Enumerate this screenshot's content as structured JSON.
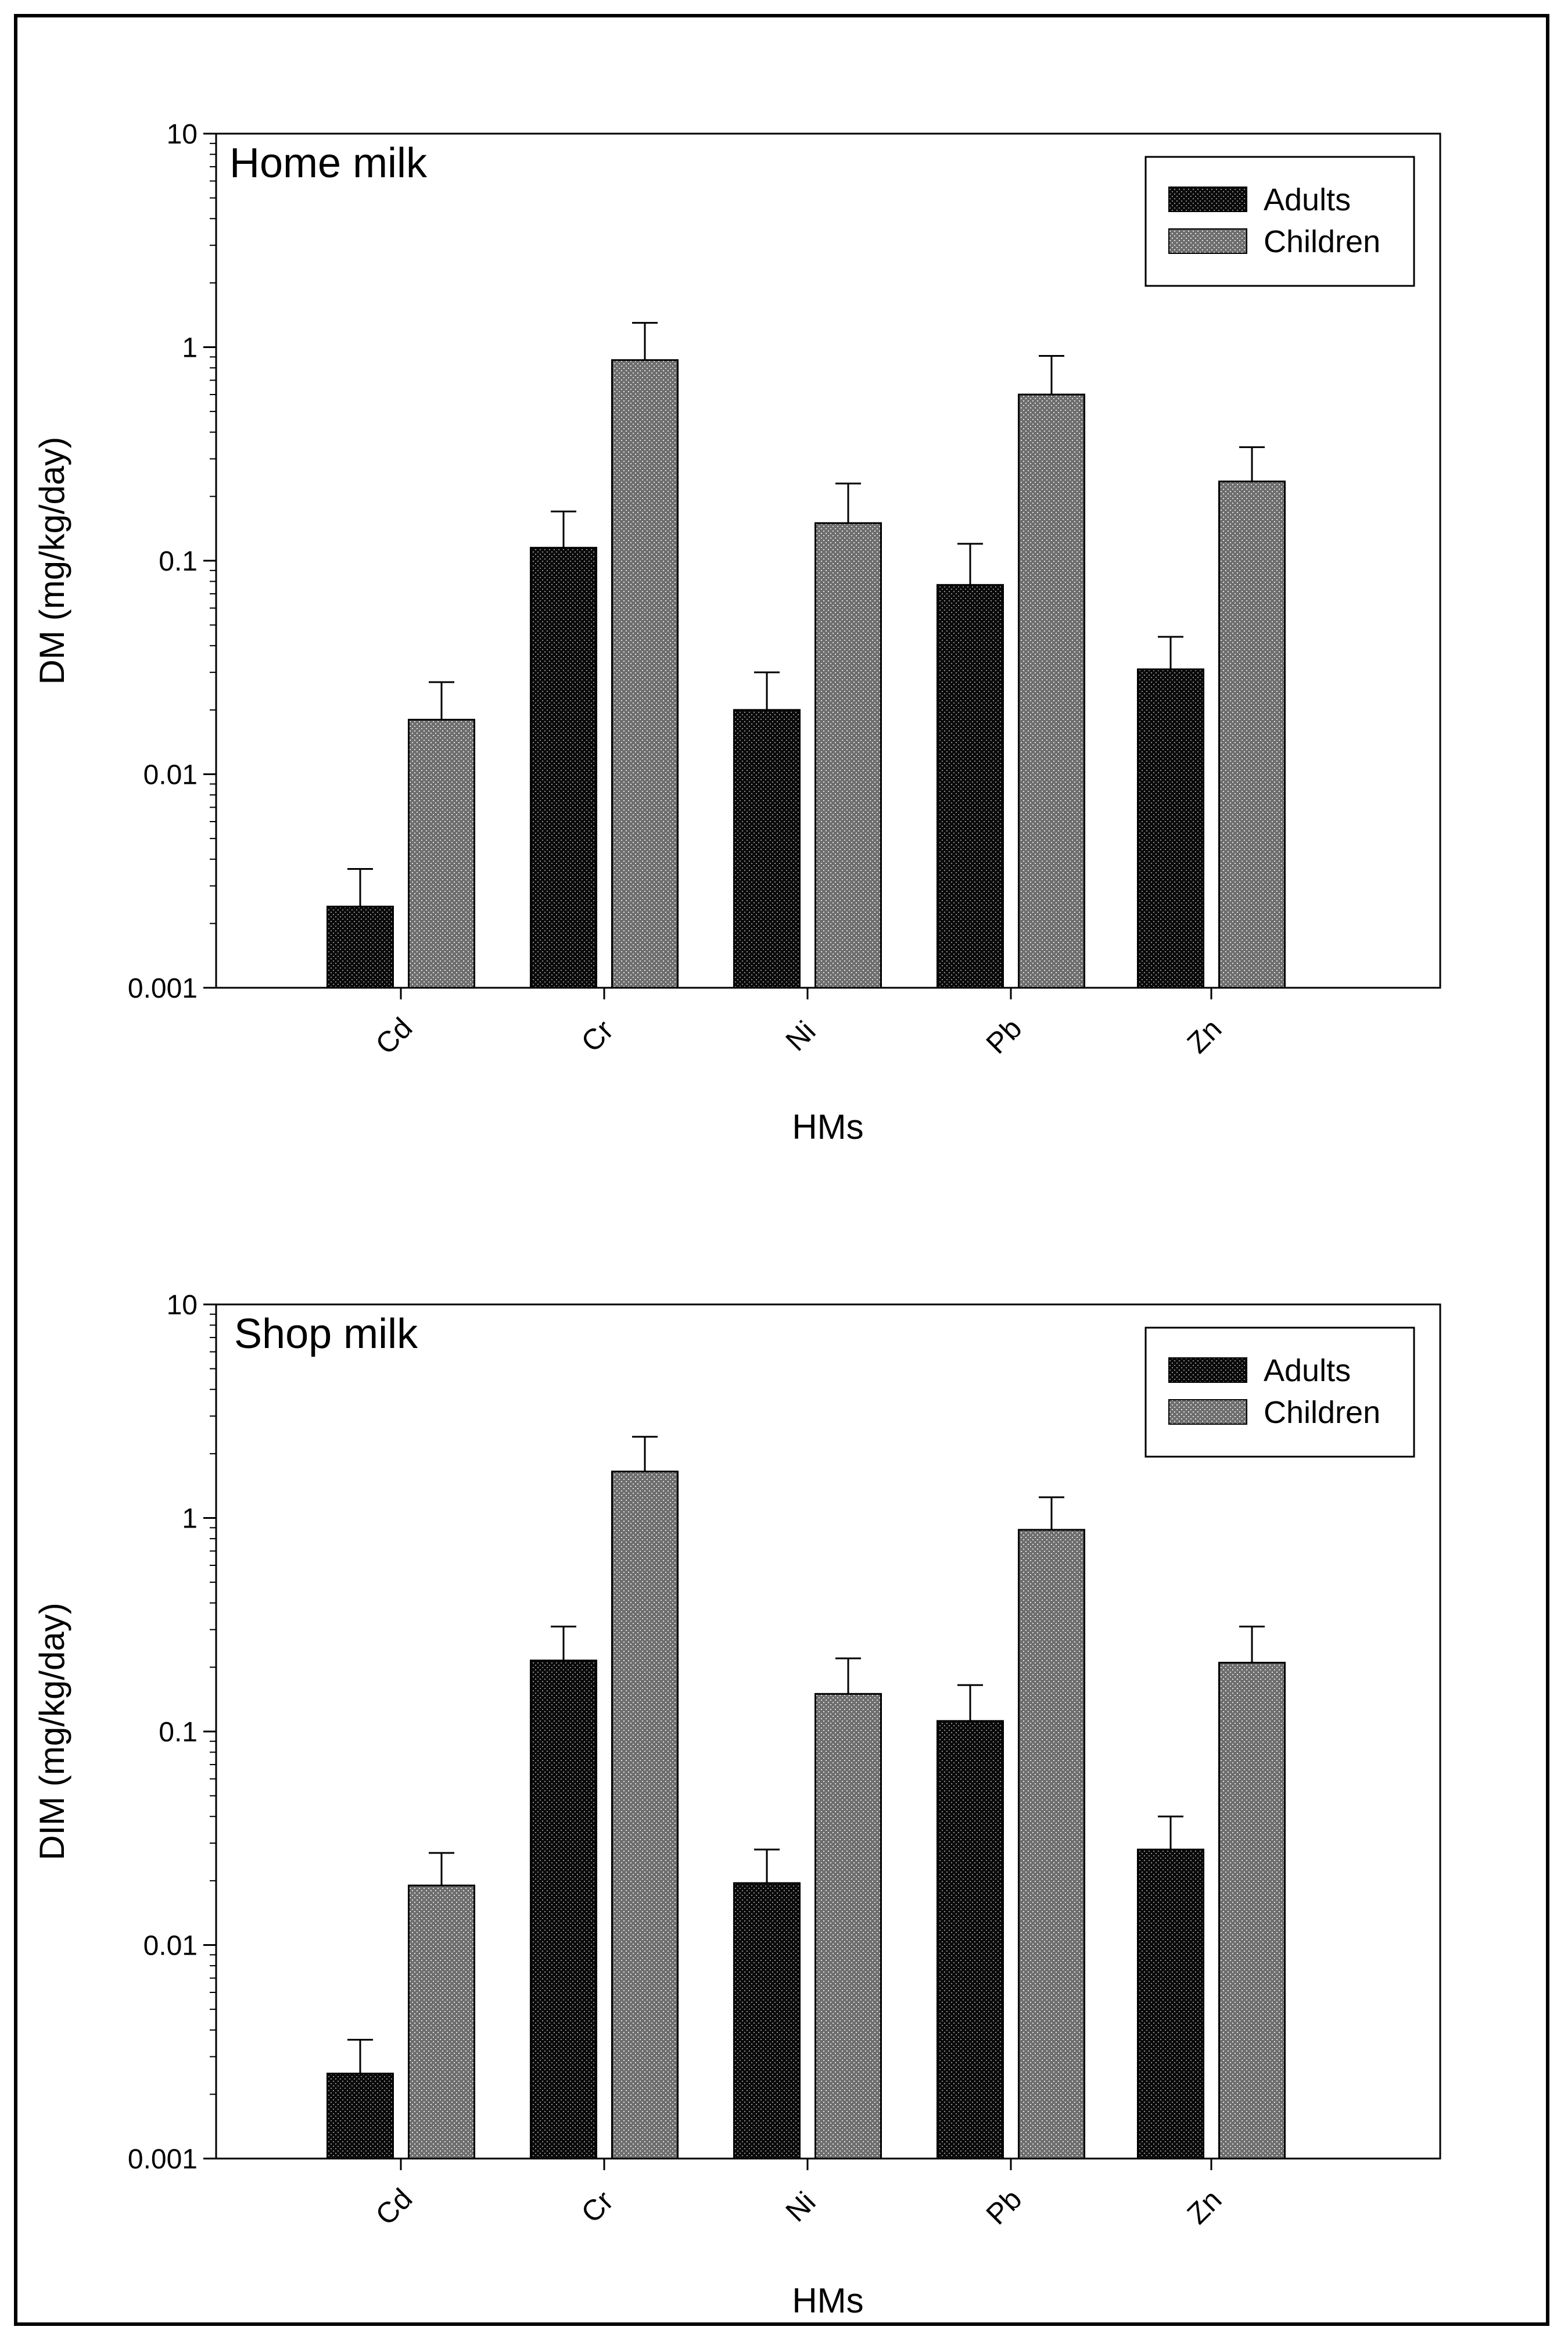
{
  "figure": {
    "border_color": "#000000"
  },
  "colors": {
    "adults": "#111111",
    "children": "#8a8a8a",
    "axis": "#000000"
  },
  "chart_data": [
    {
      "type": "bar",
      "scale": "log",
      "panel_title": "Home milk",
      "xlabel": "HMs",
      "ylabel": "DM (mg/kg/day)",
      "ylim": [
        0.001,
        10
      ],
      "yticks": [
        "0.001",
        "0.01",
        "0.1",
        "1",
        "10"
      ],
      "categories": [
        "Cd",
        "Cr",
        "Ni",
        "Pb",
        "Zn"
      ],
      "legend_position": "top-right",
      "series": [
        {
          "name": "Adults",
          "values": [
            0.0024,
            0.115,
            0.02,
            0.077,
            0.031
          ],
          "errors_upper": [
            0.0036,
            0.17,
            0.03,
            0.12,
            0.044
          ]
        },
        {
          "name": "Children",
          "values": [
            0.018,
            0.87,
            0.15,
            0.6,
            0.235
          ],
          "errors_upper": [
            0.027,
            1.3,
            0.23,
            0.91,
            0.34
          ]
        }
      ]
    },
    {
      "type": "bar",
      "scale": "log",
      "panel_title": "Shop milk",
      "xlabel": "HMs",
      "ylabel": "DIM (mg/kg/day)",
      "ylim": [
        0.001,
        10
      ],
      "yticks": [
        "0.001",
        "0.01",
        "0.1",
        "1",
        "10"
      ],
      "categories": [
        "Cd",
        "Cr",
        "Ni",
        "Pb",
        "Zn"
      ],
      "legend_position": "top-right",
      "series": [
        {
          "name": "Adults",
          "values": [
            0.0025,
            0.215,
            0.0195,
            0.112,
            0.028
          ],
          "errors_upper": [
            0.0036,
            0.31,
            0.028,
            0.165,
            0.04
          ]
        },
        {
          "name": "Children",
          "values": [
            0.019,
            1.65,
            0.15,
            0.88,
            0.21
          ],
          "errors_upper": [
            0.027,
            2.4,
            0.22,
            1.25,
            0.31
          ]
        }
      ]
    }
  ]
}
